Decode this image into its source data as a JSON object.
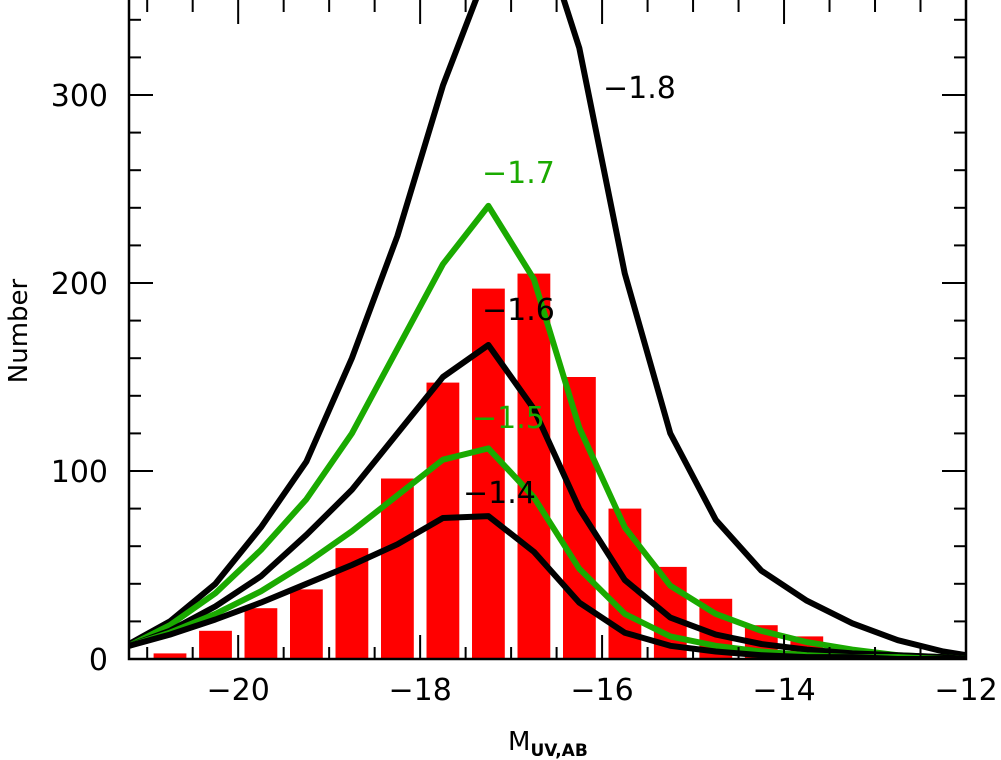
{
  "chart_data": {
    "type": "bar",
    "xlabel_main": "M",
    "xlabel_sub": "UV,AB",
    "ylabel": "Number",
    "xlim": [
      -21.2,
      -12
    ],
    "ylim": [
      0,
      350
    ],
    "x_ticks": [
      -20,
      -18,
      -16,
      -14,
      -12
    ],
    "x_tick_labels": [
      "−20",
      "−18",
      "−16",
      "−14",
      "−12"
    ],
    "y_ticks": [
      0,
      100,
      200,
      300
    ],
    "y_tick_labels": [
      "0",
      "100",
      "200",
      "300"
    ],
    "grid": false,
    "bars": {
      "color": "#ff0000",
      "x": [
        -20.75,
        -20.25,
        -19.75,
        -19.25,
        -18.75,
        -18.25,
        -17.75,
        -17.25,
        -16.75,
        -16.25,
        -15.75,
        -15.25,
        -14.75,
        -14.25,
        -13.75
      ],
      "values": [
        3,
        15,
        27,
        37,
        59,
        96,
        147,
        197,
        205,
        150,
        80,
        49,
        32,
        18,
        12
      ]
    },
    "series": [
      {
        "label": "−1.8",
        "color": "#000000",
        "x": [
          -21.2,
          -20.75,
          -20.25,
          -19.75,
          -19.25,
          -18.75,
          -18.25,
          -17.75,
          -17.25,
          -16.75,
          -16.25,
          -15.75,
          -15.25,
          -14.75,
          -14.25,
          -13.75,
          -13.25,
          -12.75,
          -12.25,
          -12.0
        ],
        "values": [
          8,
          20,
          40,
          70,
          105,
          160,
          225,
          305,
          368,
          400,
          325,
          205,
          120,
          74,
          47,
          31,
          19,
          10,
          4,
          2
        ]
      },
      {
        "label": "−1.7",
        "color": "#1aaa00",
        "x": [
          -21.2,
          -20.75,
          -20.25,
          -19.75,
          -19.25,
          -18.75,
          -18.25,
          -17.75,
          -17.25,
          -16.75,
          -16.25,
          -15.75,
          -15.25,
          -14.75,
          -14.25,
          -13.75,
          -13.25,
          -12.75,
          -12.25,
          -12.0
        ],
        "values": [
          7,
          18,
          35,
          58,
          85,
          120,
          165,
          210,
          241,
          202,
          123,
          70,
          39,
          24,
          15,
          9,
          5,
          2,
          1,
          0
        ]
      },
      {
        "label": "−1.6",
        "color": "#000000",
        "x": [
          -21.2,
          -20.75,
          -20.25,
          -19.75,
          -19.25,
          -18.75,
          -18.25,
          -17.75,
          -17.25,
          -16.75,
          -16.25,
          -15.75,
          -15.25,
          -14.75,
          -14.25,
          -13.75,
          -13.25,
          -12.75,
          -12.25,
          -12.0
        ],
        "values": [
          7,
          15,
          28,
          44,
          66,
          90,
          120,
          150,
          167,
          133,
          80,
          42,
          22,
          13,
          8,
          5,
          3,
          2,
          1,
          0
        ]
      },
      {
        "label": "−1.5",
        "color": "#1aaa00",
        "x": [
          -21.2,
          -20.75,
          -20.25,
          -19.75,
          -19.25,
          -18.75,
          -18.25,
          -17.75,
          -17.25,
          -16.75,
          -16.25,
          -15.75,
          -15.25,
          -14.75,
          -14.25,
          -13.75,
          -13.25,
          -12.75,
          -12.25,
          -12.0
        ],
        "values": [
          7,
          14,
          24,
          36,
          51,
          68,
          87,
          106,
          112,
          86,
          48,
          24,
          12,
          7,
          4,
          2,
          1,
          1,
          0,
          0
        ]
      },
      {
        "label": "−1.4",
        "color": "#000000",
        "x": [
          -21.2,
          -20.75,
          -20.25,
          -19.75,
          -19.25,
          -18.75,
          -18.25,
          -17.75,
          -17.25,
          -16.75,
          -16.25,
          -15.75,
          -15.25,
          -14.75,
          -14.25,
          -13.75,
          -13.25,
          -12.75,
          -12.25,
          -12.0
        ],
        "values": [
          7,
          13,
          21,
          30,
          40,
          50,
          61,
          75,
          76,
          57,
          30,
          14,
          7,
          4,
          2,
          1,
          1,
          0,
          0,
          0
        ]
      }
    ]
  }
}
